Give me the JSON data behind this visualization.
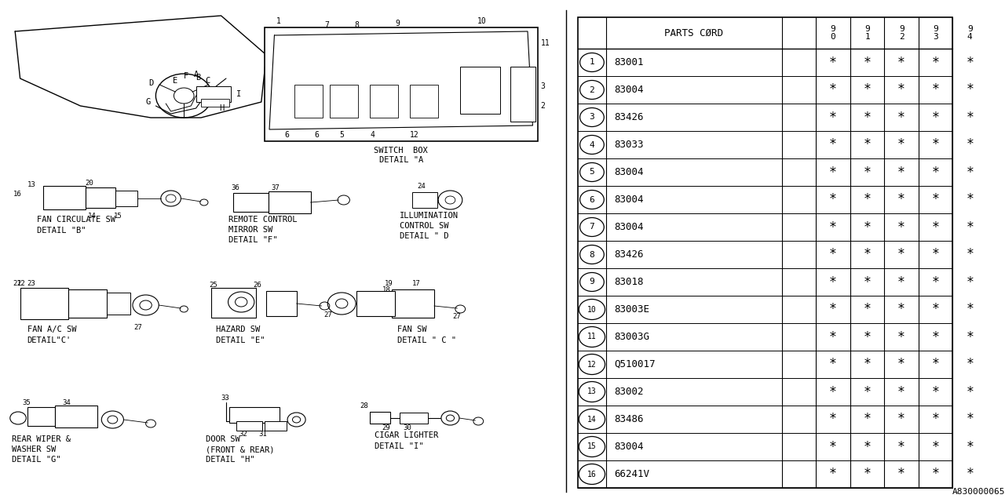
{
  "bg_color": "#ffffff",
  "table": {
    "rows": [
      [
        "1",
        "83001"
      ],
      [
        "2",
        "83004"
      ],
      [
        "3",
        "83426"
      ],
      [
        "4",
        "83033"
      ],
      [
        "5",
        "83004"
      ],
      [
        "6",
        "83004"
      ],
      [
        "7",
        "83004"
      ],
      [
        "8",
        "83426"
      ],
      [
        "9",
        "83018"
      ],
      [
        "10",
        "83003E"
      ],
      [
        "11",
        "83003G"
      ],
      [
        "12",
        "Q510017"
      ],
      [
        "13",
        "83002"
      ],
      [
        "14",
        "83486"
      ],
      [
        "15",
        "83004"
      ],
      [
        "16",
        "66241V"
      ]
    ],
    "years": [
      "9\n0",
      "9\n1",
      "9\n2",
      "9\n3",
      "9\n4"
    ]
  },
  "watermark": "A830000065",
  "lw": 0.8
}
